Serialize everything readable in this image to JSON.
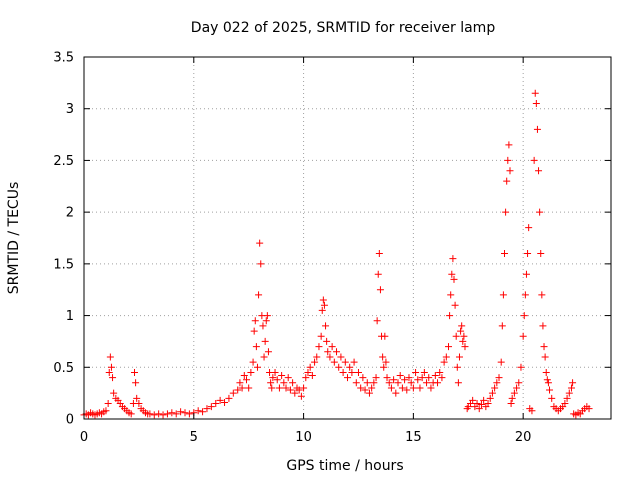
{
  "chart_data": {
    "type": "scatter",
    "title": "Day 022 of 2025, SRMTID for receiver lamp",
    "xlabel": "GPS time / hours",
    "ylabel": "SRMTID / TECUs",
    "xlim": [
      0,
      24
    ],
    "ylim": [
      0,
      3.5
    ],
    "x_ticks": [
      0,
      5,
      10,
      15,
      20
    ],
    "x_tick_labels": [
      "0",
      "5",
      "10",
      "15",
      "20"
    ],
    "y_ticks": [
      0,
      0.5,
      1,
      1.5,
      2,
      2.5,
      3,
      3.5
    ],
    "y_tick_labels": [
      "0",
      "0.5",
      "1",
      "1.5",
      "2",
      "2.5",
      "3",
      "3.5"
    ],
    "grid": true,
    "marker": "+",
    "colors": {
      "series": "#ff0000",
      "grid": "#a0a0a0",
      "axes": "#000000"
    },
    "series": [
      {
        "name": "SRMTID",
        "points": [
          [
            0.0,
            0.04
          ],
          [
            0.1,
            0.05
          ],
          [
            0.2,
            0.04
          ],
          [
            0.3,
            0.06
          ],
          [
            0.4,
            0.05
          ],
          [
            0.5,
            0.04
          ],
          [
            0.6,
            0.05
          ],
          [
            0.7,
            0.06
          ],
          [
            0.8,
            0.05
          ],
          [
            0.9,
            0.07
          ],
          [
            1.0,
            0.08
          ],
          [
            1.1,
            0.15
          ],
          [
            1.15,
            0.45
          ],
          [
            1.2,
            0.6
          ],
          [
            1.25,
            0.5
          ],
          [
            1.3,
            0.4
          ],
          [
            1.35,
            0.25
          ],
          [
            1.45,
            0.2
          ],
          [
            1.55,
            0.18
          ],
          [
            1.65,
            0.15
          ],
          [
            1.75,
            0.12
          ],
          [
            1.85,
            0.1
          ],
          [
            1.95,
            0.08
          ],
          [
            2.05,
            0.06
          ],
          [
            2.15,
            0.05
          ],
          [
            2.25,
            0.15
          ],
          [
            2.3,
            0.45
          ],
          [
            2.35,
            0.35
          ],
          [
            2.4,
            0.2
          ],
          [
            2.5,
            0.15
          ],
          [
            2.6,
            0.1
          ],
          [
            2.7,
            0.08
          ],
          [
            2.8,
            0.06
          ],
          [
            2.9,
            0.05
          ],
          [
            3.0,
            0.05
          ],
          [
            3.2,
            0.04
          ],
          [
            3.4,
            0.05
          ],
          [
            3.6,
            0.04
          ],
          [
            3.8,
            0.05
          ],
          [
            4.0,
            0.06
          ],
          [
            4.2,
            0.05
          ],
          [
            4.4,
            0.07
          ],
          [
            4.6,
            0.06
          ],
          [
            4.8,
            0.05
          ],
          [
            5.0,
            0.06
          ],
          [
            5.2,
            0.08
          ],
          [
            5.4,
            0.07
          ],
          [
            5.6,
            0.1
          ],
          [
            5.8,
            0.12
          ],
          [
            6.0,
            0.15
          ],
          [
            6.2,
            0.18
          ],
          [
            6.4,
            0.16
          ],
          [
            6.6,
            0.2
          ],
          [
            6.8,
            0.25
          ],
          [
            7.0,
            0.28
          ],
          [
            7.1,
            0.35
          ],
          [
            7.2,
            0.3
          ],
          [
            7.3,
            0.42
          ],
          [
            7.4,
            0.38
          ],
          [
            7.5,
            0.3
          ],
          [
            7.6,
            0.45
          ],
          [
            7.7,
            0.55
          ],
          [
            7.75,
            0.85
          ],
          [
            7.8,
            0.95
          ],
          [
            7.85,
            0.7
          ],
          [
            7.9,
            0.5
          ],
          [
            7.95,
            1.2
          ],
          [
            8.0,
            1.7
          ],
          [
            8.05,
            1.5
          ],
          [
            8.1,
            1.0
          ],
          [
            8.15,
            0.9
          ],
          [
            8.2,
            0.6
          ],
          [
            8.25,
            0.75
          ],
          [
            8.3,
            0.95
          ],
          [
            8.35,
            1.0
          ],
          [
            8.4,
            0.65
          ],
          [
            8.45,
            0.45
          ],
          [
            8.5,
            0.35
          ],
          [
            8.55,
            0.3
          ],
          [
            8.6,
            0.4
          ],
          [
            8.7,
            0.45
          ],
          [
            8.8,
            0.38
          ],
          [
            8.9,
            0.3
          ],
          [
            9.0,
            0.42
          ],
          [
            9.1,
            0.35
          ],
          [
            9.2,
            0.3
          ],
          [
            9.3,
            0.4
          ],
          [
            9.4,
            0.28
          ],
          [
            9.5,
            0.35
          ],
          [
            9.6,
            0.25
          ],
          [
            9.7,
            0.3
          ],
          [
            9.8,
            0.28
          ],
          [
            9.9,
            0.22
          ],
          [
            10.0,
            0.3
          ],
          [
            10.1,
            0.4
          ],
          [
            10.2,
            0.45
          ],
          [
            10.3,
            0.5
          ],
          [
            10.4,
            0.42
          ],
          [
            10.5,
            0.55
          ],
          [
            10.6,
            0.6
          ],
          [
            10.7,
            0.7
          ],
          [
            10.8,
            0.8
          ],
          [
            10.85,
            1.05
          ],
          [
            10.9,
            1.15
          ],
          [
            10.95,
            1.1
          ],
          [
            11.0,
            0.9
          ],
          [
            11.05,
            0.75
          ],
          [
            11.1,
            0.65
          ],
          [
            11.2,
            0.6
          ],
          [
            11.3,
            0.7
          ],
          [
            11.4,
            0.55
          ],
          [
            11.5,
            0.65
          ],
          [
            11.6,
            0.5
          ],
          [
            11.7,
            0.6
          ],
          [
            11.8,
            0.45
          ],
          [
            11.9,
            0.55
          ],
          [
            12.0,
            0.4
          ],
          [
            12.1,
            0.5
          ],
          [
            12.2,
            0.45
          ],
          [
            12.3,
            0.55
          ],
          [
            12.4,
            0.35
          ],
          [
            12.5,
            0.45
          ],
          [
            12.6,
            0.3
          ],
          [
            12.7,
            0.4
          ],
          [
            12.8,
            0.28
          ],
          [
            12.9,
            0.35
          ],
          [
            13.0,
            0.25
          ],
          [
            13.1,
            0.3
          ],
          [
            13.2,
            0.35
          ],
          [
            13.3,
            0.4
          ],
          [
            13.35,
            0.95
          ],
          [
            13.4,
            1.4
          ],
          [
            13.45,
            1.6
          ],
          [
            13.5,
            1.25
          ],
          [
            13.55,
            0.8
          ],
          [
            13.6,
            0.6
          ],
          [
            13.65,
            0.5
          ],
          [
            13.7,
            0.8
          ],
          [
            13.75,
            0.55
          ],
          [
            13.8,
            0.4
          ],
          [
            13.9,
            0.35
          ],
          [
            14.0,
            0.3
          ],
          [
            14.1,
            0.38
          ],
          [
            14.2,
            0.25
          ],
          [
            14.3,
            0.35
          ],
          [
            14.4,
            0.42
          ],
          [
            14.5,
            0.3
          ],
          [
            14.6,
            0.38
          ],
          [
            14.7,
            0.28
          ],
          [
            14.8,
            0.4
          ],
          [
            14.9,
            0.35
          ],
          [
            15.0,
            0.3
          ],
          [
            15.1,
            0.45
          ],
          [
            15.2,
            0.38
          ],
          [
            15.3,
            0.3
          ],
          [
            15.4,
            0.4
          ],
          [
            15.5,
            0.45
          ],
          [
            15.6,
            0.35
          ],
          [
            15.7,
            0.4
          ],
          [
            15.8,
            0.3
          ],
          [
            15.9,
            0.35
          ],
          [
            16.0,
            0.42
          ],
          [
            16.1,
            0.35
          ],
          [
            16.2,
            0.45
          ],
          [
            16.3,
            0.4
          ],
          [
            16.4,
            0.55
          ],
          [
            16.5,
            0.6
          ],
          [
            16.6,
            0.7
          ],
          [
            16.65,
            1.0
          ],
          [
            16.7,
            1.2
          ],
          [
            16.75,
            1.4
          ],
          [
            16.8,
            1.55
          ],
          [
            16.85,
            1.35
          ],
          [
            16.9,
            1.1
          ],
          [
            16.95,
            0.8
          ],
          [
            17.0,
            0.5
          ],
          [
            17.05,
            0.35
          ],
          [
            17.1,
            0.6
          ],
          [
            17.15,
            0.85
          ],
          [
            17.2,
            0.9
          ],
          [
            17.25,
            0.75
          ],
          [
            17.3,
            0.8
          ],
          [
            17.35,
            0.7
          ],
          [
            17.45,
            0.1
          ],
          [
            17.5,
            0.12
          ],
          [
            17.6,
            0.15
          ],
          [
            17.7,
            0.18
          ],
          [
            17.8,
            0.12
          ],
          [
            17.9,
            0.15
          ],
          [
            18.0,
            0.1
          ],
          [
            18.1,
            0.14
          ],
          [
            18.2,
            0.18
          ],
          [
            18.3,
            0.12
          ],
          [
            18.4,
            0.15
          ],
          [
            18.5,
            0.2
          ],
          [
            18.6,
            0.25
          ],
          [
            18.7,
            0.3
          ],
          [
            18.8,
            0.35
          ],
          [
            18.9,
            0.4
          ],
          [
            19.0,
            0.55
          ],
          [
            19.05,
            0.9
          ],
          [
            19.1,
            1.2
          ],
          [
            19.15,
            1.6
          ],
          [
            19.2,
            2.0
          ],
          [
            19.25,
            2.3
          ],
          [
            19.3,
            2.5
          ],
          [
            19.35,
            2.65
          ],
          [
            19.4,
            2.4
          ],
          [
            19.45,
            0.15
          ],
          [
            19.5,
            0.2
          ],
          [
            19.6,
            0.25
          ],
          [
            19.7,
            0.3
          ],
          [
            19.8,
            0.35
          ],
          [
            19.9,
            0.5
          ],
          [
            20.0,
            0.8
          ],
          [
            20.05,
            1.0
          ],
          [
            20.1,
            1.2
          ],
          [
            20.15,
            1.4
          ],
          [
            20.2,
            1.6
          ],
          [
            20.25,
            1.85
          ],
          [
            20.3,
            0.1
          ],
          [
            20.4,
            0.08
          ],
          [
            20.5,
            2.5
          ],
          [
            20.55,
            3.15
          ],
          [
            20.6,
            3.05
          ],
          [
            20.65,
            2.8
          ],
          [
            20.7,
            2.4
          ],
          [
            20.75,
            2.0
          ],
          [
            20.8,
            1.6
          ],
          [
            20.85,
            1.2
          ],
          [
            20.9,
            0.9
          ],
          [
            20.95,
            0.7
          ],
          [
            21.0,
            0.6
          ],
          [
            21.05,
            0.45
          ],
          [
            21.1,
            0.38
          ],
          [
            21.15,
            0.35
          ],
          [
            21.2,
            0.28
          ],
          [
            21.3,
            0.2
          ],
          [
            21.4,
            0.12
          ],
          [
            21.5,
            0.1
          ],
          [
            21.6,
            0.08
          ],
          [
            21.7,
            0.1
          ],
          [
            21.8,
            0.12
          ],
          [
            21.9,
            0.15
          ],
          [
            22.0,
            0.2
          ],
          [
            22.1,
            0.25
          ],
          [
            22.2,
            0.3
          ],
          [
            22.25,
            0.35
          ],
          [
            22.3,
            0.05
          ],
          [
            22.4,
            0.04
          ],
          [
            22.5,
            0.06
          ],
          [
            22.6,
            0.05
          ],
          [
            22.7,
            0.08
          ],
          [
            22.8,
            0.1
          ],
          [
            22.9,
            0.12
          ],
          [
            23.0,
            0.1
          ]
        ]
      }
    ]
  }
}
